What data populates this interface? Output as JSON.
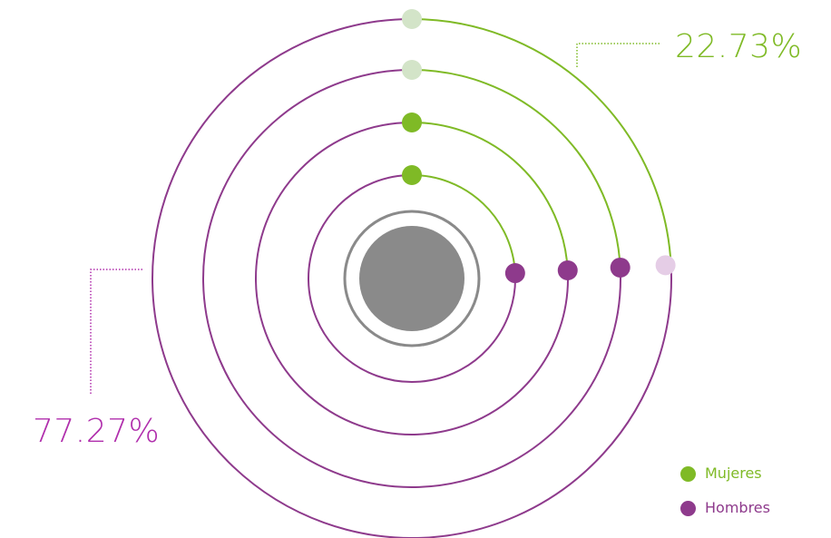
{
  "colors": {
    "mujeres": "#7fba26",
    "mujeres_faded": "#d3e4c8",
    "hombres": "#8e3a8c",
    "hombres_faded": "#e5cde6",
    "hombres_text": "#b02eac",
    "center": "#8a8a8a"
  },
  "chart_data": {
    "type": "radial-bar",
    "rings": 4,
    "series": [
      {
        "name": "Mujeres",
        "value": 22.73,
        "unit": "%"
      },
      {
        "name": "Hombres",
        "value": 77.27,
        "unit": "%"
      }
    ],
    "labels": {
      "mujeres_pct": "22.73%",
      "hombres_pct": "77.27%"
    },
    "legend": {
      "placement": "bottom-right",
      "items": [
        "Mujeres",
        "Hombres"
      ]
    }
  }
}
